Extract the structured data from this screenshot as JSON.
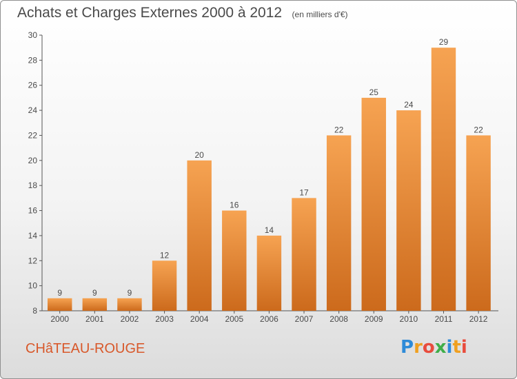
{
  "title": "Achats et Charges Externes 2000 à 2012",
  "subtitle": "(en milliers d'€)",
  "commune": "CHâTEAU-ROUGE",
  "logo": {
    "text": "Proxiti",
    "colors": [
      "#2e8bd8",
      "#f0a020",
      "#e84c3d",
      "#3fae49",
      "#2e8bd8",
      "#f0a020",
      "#e84c3d"
    ]
  },
  "colors": {
    "bar_top": "#f6a352",
    "bar_bottom": "#cc6a1c",
    "text": "#4a4a4a",
    "commune": "#d8582a"
  },
  "chart_data": {
    "type": "bar",
    "title": "Achats et Charges Externes 2000 à 2012",
    "subtitle": "(en milliers d'€)",
    "categories": [
      "2000",
      "2001",
      "2002",
      "2003",
      "2004",
      "2005",
      "2006",
      "2007",
      "2008",
      "2009",
      "2010",
      "2011",
      "2012"
    ],
    "values": [
      9,
      9,
      9,
      12,
      20,
      16,
      14,
      17,
      22,
      25,
      24,
      29,
      22
    ],
    "ylim": [
      8,
      30
    ],
    "yticks": [
      8,
      10,
      12,
      14,
      16,
      18,
      20,
      22,
      24,
      26,
      28,
      30
    ],
    "grid": false,
    "legend": "none"
  }
}
